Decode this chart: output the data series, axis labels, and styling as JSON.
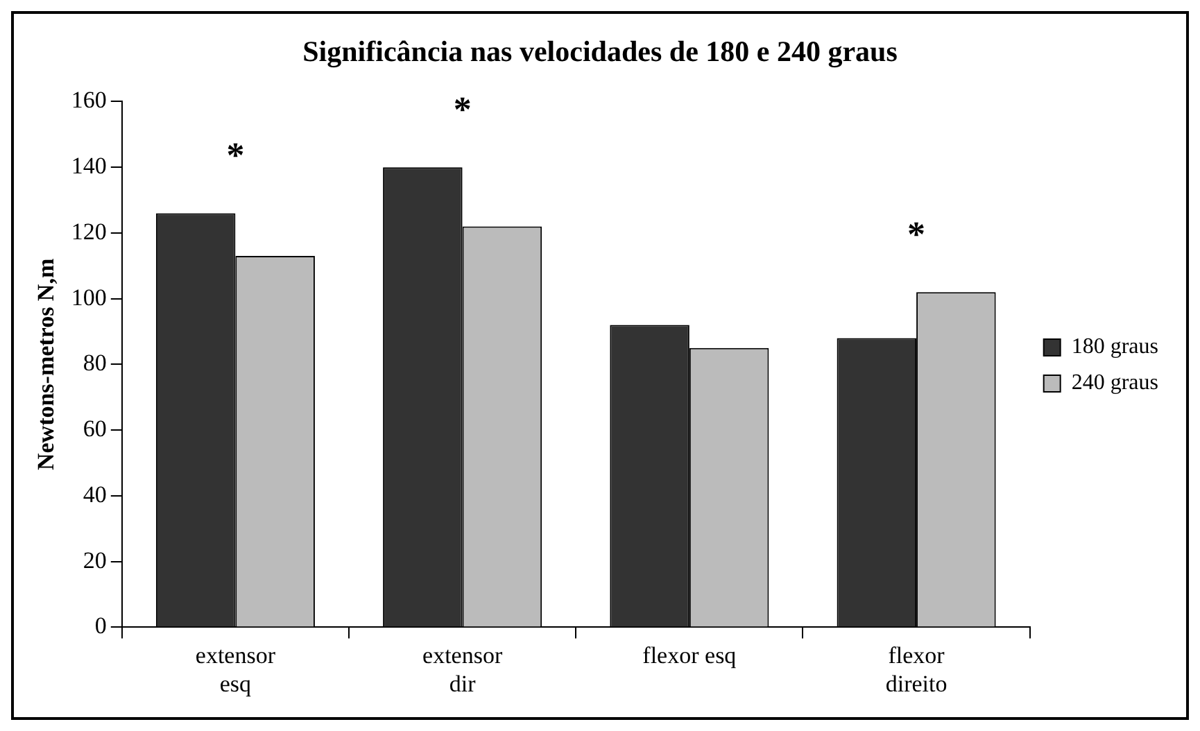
{
  "chart_data": {
    "type": "bar",
    "title": "Significância nas velocidades de 180 e 240 graus",
    "ylabel": "Newtons-metros N,m",
    "categories": [
      "extensor esq",
      "extensor dir",
      "flexor esq",
      "flexor direito"
    ],
    "series": [
      {
        "name": "180 graus",
        "color": "#333333",
        "values": [
          126,
          140,
          92,
          88
        ]
      },
      {
        "name": "240 graus",
        "color": "#bbbbbb",
        "values": [
          113,
          122,
          85,
          102
        ]
      }
    ],
    "ylim": [
      0,
      160
    ],
    "yticks": [
      0,
      20,
      40,
      60,
      80,
      100,
      120,
      140,
      160
    ],
    "grid": false,
    "legend": "right",
    "annotations": [
      {
        "text": "*",
        "x": "extensor esq",
        "y": 126
      },
      {
        "text": "*",
        "x": "extensor dir",
        "y": 140
      },
      {
        "text": "*",
        "x": "flexor direito",
        "y": 102
      }
    ]
  }
}
